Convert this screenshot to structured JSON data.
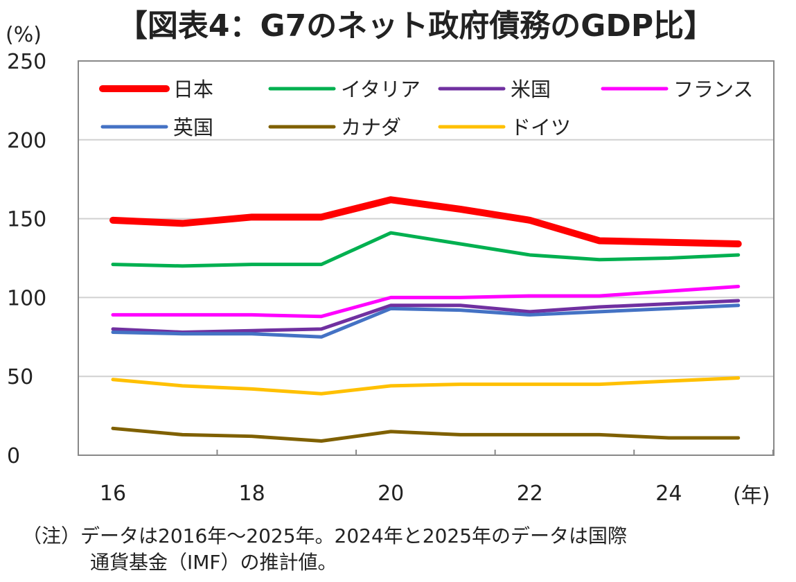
{
  "chart_data": {
    "type": "line",
    "title": "【図表4：G7のネット政府債務のGDP比】",
    "ylabel": "(%)",
    "xlabel": "(年)",
    "ylim": [
      0,
      250
    ],
    "yticks": [
      "0",
      "50",
      "100",
      "150",
      "200",
      "250"
    ],
    "xtick_labels": [
      "16",
      "18",
      "20",
      "22",
      "24"
    ],
    "x": [
      2016,
      2017,
      2018,
      2019,
      2020,
      2021,
      2022,
      2023,
      2024,
      2025
    ],
    "grid": "horizontal",
    "legend_position": "top",
    "series": [
      {
        "name": "日本",
        "color": "#ff0000",
        "values": [
          149,
          147,
          151,
          151,
          162,
          156,
          149,
          136,
          135,
          134
        ]
      },
      {
        "name": "イタリア",
        "color": "#00b050",
        "values": [
          121,
          120,
          121,
          121,
          141,
          134,
          127,
          124,
          125,
          127
        ]
      },
      {
        "name": "米国",
        "color": "#7030a0",
        "values": [
          80,
          78,
          79,
          80,
          95,
          95,
          91,
          94,
          96,
          98
        ]
      },
      {
        "name": "フランス",
        "color": "#ff00ff",
        "values": [
          89,
          89,
          89,
          88,
          100,
          100,
          101,
          101,
          104,
          107
        ]
      },
      {
        "name": "英国",
        "color": "#4472c4",
        "values": [
          78,
          77,
          77,
          75,
          93,
          92,
          89,
          91,
          93,
          95
        ]
      },
      {
        "name": "カナダ",
        "color": "#7f6000",
        "values": [
          17,
          13,
          12,
          9,
          15,
          13,
          13,
          13,
          11,
          11
        ]
      },
      {
        "name": "ドイツ",
        "color": "#ffc000",
        "values": [
          48,
          44,
          42,
          39,
          44,
          45,
          45,
          45,
          47,
          49
        ]
      }
    ]
  },
  "notes": {
    "line1": "（注）データは2016年～2025年。2024年と2025年のデータは国際",
    "line2": "通貨基金（IMF）の推計値。"
  }
}
